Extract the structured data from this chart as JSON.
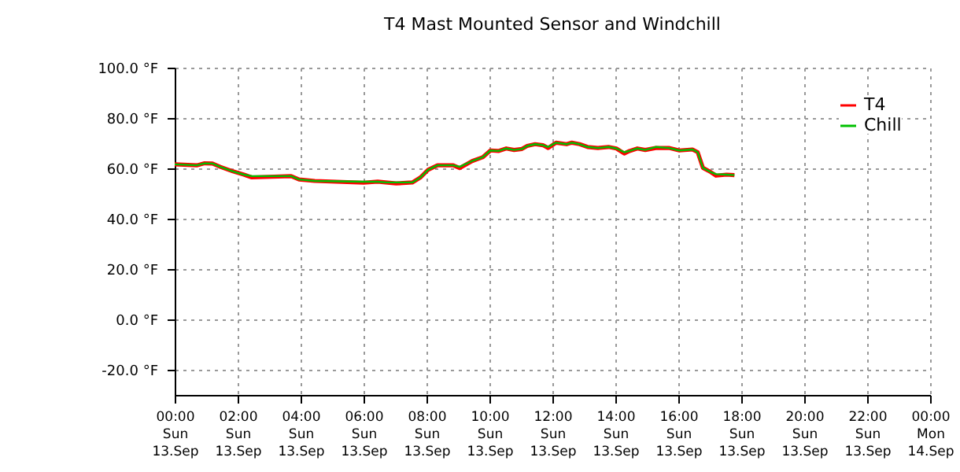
{
  "chart_data": {
    "type": "line",
    "title": "T4 Mast Mounted Sensor and Windchill",
    "x": [
      "--09-13T00:00",
      "--09-13T00:42",
      "--09-13T00:57",
      "--09-13T01:12",
      "--09-13T01:27",
      "--09-13T01:51",
      "--09-13T02:12",
      "--09-13T02:27",
      "--09-13T03:42",
      "--09-13T03:57",
      "--09-13T04:27",
      "--09-13T06:00",
      "--09-13T06:27",
      "--09-13T06:42",
      "--09-13T07:02",
      "--09-13T07:33",
      "--09-13T07:48",
      "--09-13T08:03",
      "--09-13T08:21",
      "--09-13T08:51",
      "--09-13T09:03",
      "--09-13T09:27",
      "--09-13T09:47",
      "--09-13T10:02",
      "--09-13T10:17",
      "--09-13T10:32",
      "--09-13T10:47",
      "--09-13T11:02",
      "--09-13T11:12",
      "--09-13T11:27",
      "--09-13T11:42",
      "--09-13T11:52",
      "--09-13T12:07",
      "--09-13T12:27",
      "--09-13T12:37",
      "--09-13T12:52",
      "--09-13T13:07",
      "--09-13T13:27",
      "--09-13T13:47",
      "--09-13T14:02",
      "--09-13T14:17",
      "--09-13T14:27",
      "--09-13T14:42",
      "--09-13T14:57",
      "--09-13T15:17",
      "--09-13T15:42",
      "--09-13T16:02",
      "--09-13T16:27",
      "--09-13T16:37",
      "--09-13T16:47",
      "--09-13T17:02",
      "--09-13T17:12",
      "--09-13T17:32",
      "--09-13T17:47"
    ],
    "series": [
      {
        "name": "T4",
        "color": "#ff0000",
        "values": [
          61.6,
          61.2,
          62,
          61.9,
          60.6,
          58.8,
          57.5,
          56.4,
          56.9,
          55.6,
          55,
          54.3,
          54.7,
          54.4,
          54.0,
          54.4,
          56.3,
          59.4,
          61.2,
          61.2,
          60.1,
          62.9,
          64.4,
          67.1,
          66.9,
          67.9,
          67.3,
          67.7,
          68.9,
          69.6,
          69.2,
          68.1,
          70.2,
          69.6,
          70.2,
          69.6,
          68.5,
          68.1,
          68.5,
          67.9,
          65.9,
          66.9,
          67.9,
          67.3,
          68.1,
          68.1,
          67.1,
          67.5,
          66.4,
          60.2,
          58.5,
          57.1,
          57.5,
          57.3
        ]
      },
      {
        "name": "Chill",
        "color": "#00c000",
        "values": [
          61.6,
          61.2,
          62,
          61.9,
          60.6,
          58.8,
          57.5,
          56.9,
          56.9,
          55.6,
          55,
          54.7,
          54.7,
          54.4,
          54.4,
          54.4,
          56.3,
          59.4,
          61.2,
          61.2,
          60.6,
          62.9,
          64.4,
          67.1,
          66.9,
          67.9,
          67.3,
          67.7,
          68.9,
          69.6,
          69.2,
          68.5,
          70.2,
          69.6,
          70.2,
          69.6,
          68.5,
          68.1,
          68.5,
          67.9,
          66.4,
          66.9,
          67.9,
          67.3,
          68.5,
          68.1,
          67.1,
          67.5,
          66.4,
          60.2,
          58.5,
          57.7,
          57.5,
          57.3
        ]
      }
    ],
    "xlim": [
      "--09-13T00:00",
      "--09-14T00:00"
    ],
    "xticks": [
      {
        "value": "--09-13T00:00",
        "label": "00:00\nSun\n13.Sep"
      },
      {
        "value": "--09-13T02:00",
        "label": "02:00\nSun\n13.Sep"
      },
      {
        "value": "--09-13T04:00",
        "label": "04:00\nSun\n13.Sep"
      },
      {
        "value": "--09-13T06:00",
        "label": "06:00\nSun\n13.Sep"
      },
      {
        "value": "--09-13T08:00",
        "label": "08:00\nSun\n13.Sep"
      },
      {
        "value": "--09-13T10:00",
        "label": "10:00\nSun\n13.Sep"
      },
      {
        "value": "--09-13T12:00",
        "label": "12:00\nSun\n13.Sep"
      },
      {
        "value": "--09-13T14:00",
        "label": "14:00\nSun\n13.Sep"
      },
      {
        "value": "--09-13T16:00",
        "label": "16:00\nSun\n13.Sep"
      },
      {
        "value": "--09-13T18:00",
        "label": "18:00\nSun\n13.Sep"
      },
      {
        "value": "--09-13T20:00",
        "label": "20:00\nSun\n13.Sep"
      },
      {
        "value": "--09-13T22:00",
        "label": "22:00\nSun\n13.Sep"
      },
      {
        "value": "--09-14T00:00",
        "label": "00:00\nMon\n14.Sep"
      }
    ],
    "ylim": [
      -30,
      100
    ],
    "yticks": [
      {
        "value": -20,
        "label": "-20.0 °F"
      },
      {
        "value": 0,
        "label": "0.0 °F"
      },
      {
        "value": 20,
        "label": "20.0 °F"
      },
      {
        "value": 40,
        "label": "40.0 °F"
      },
      {
        "value": 60,
        "label": "60.0 °F"
      },
      {
        "value": 80,
        "label": "80.0 °F"
      },
      {
        "value": 100,
        "label": "100.0 °F"
      }
    ],
    "grid": true,
    "legend": "top right",
    "line_style": "solid"
  }
}
